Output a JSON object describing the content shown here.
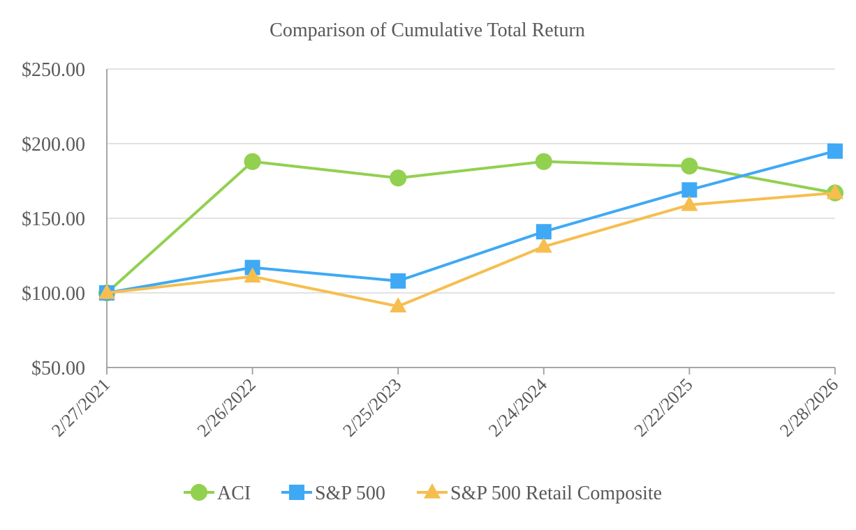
{
  "chart_data": {
    "type": "line",
    "title": "Comparison of Cumulative Total Return",
    "xlabel": "",
    "ylabel": "",
    "categories": [
      "2/27/2021",
      "2/26/2022",
      "2/25/2023",
      "2/24/2024",
      "2/22/2025",
      "2/28/2026"
    ],
    "ylim": [
      50,
      250
    ],
    "yticks": [
      50,
      100,
      150,
      200,
      250
    ],
    "ytick_labels": [
      "$50.00",
      "$100.00",
      "$150.00",
      "$200.00",
      "$250.00"
    ],
    "grid": true,
    "legend_position": "bottom",
    "series": [
      {
        "name": "ACI",
        "marker": "circle",
        "color": "#92D050",
        "values": [
          100,
          188,
          177,
          188,
          185,
          167
        ]
      },
      {
        "name": "S&P 500",
        "marker": "square",
        "color": "#3FA9F5",
        "values": [
          100,
          117,
          108,
          141,
          169,
          195
        ]
      },
      {
        "name": "S&P 500 Retail Composite",
        "marker": "triangle",
        "color": "#F6BE4F",
        "values": [
          100,
          111,
          91,
          131,
          159,
          167
        ]
      }
    ]
  }
}
